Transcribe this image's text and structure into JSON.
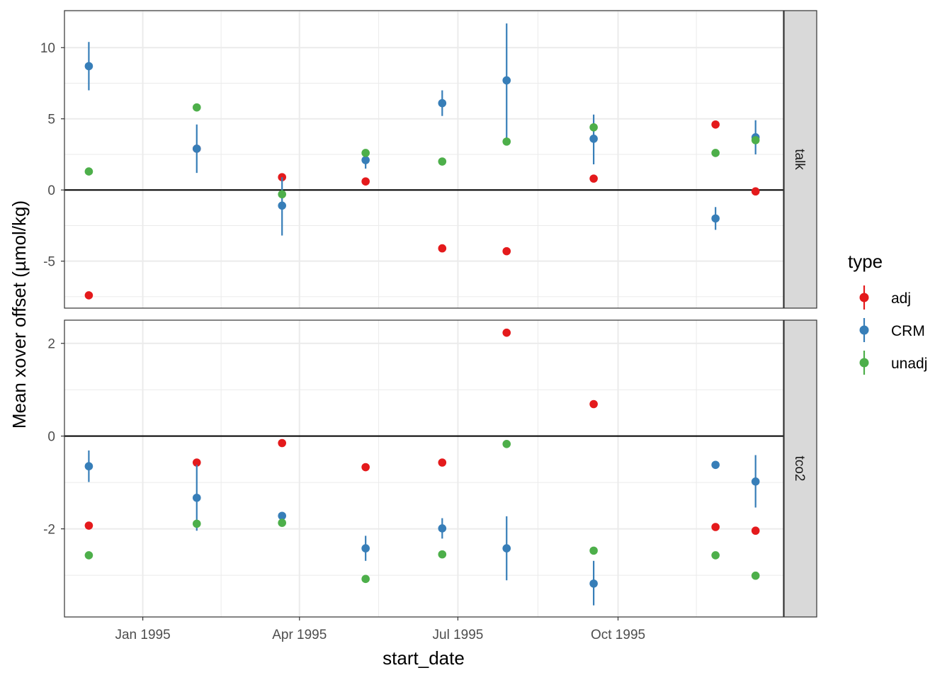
{
  "chart_data": {
    "type": "scatter",
    "subtype": "pointrange faceted by parameter",
    "xlabel": "start_date",
    "ylabel": "Mean xover offset (µmol/kg)",
    "x_ticks": [
      "Jan 1995",
      "Apr 1995",
      "Jul 1995",
      "Oct 1995"
    ],
    "x_tick_dates": [
      "1995-01-01",
      "1995-04-01",
      "1995-07-01",
      "1995-10-01"
    ],
    "xlim": [
      "1994-11-17",
      "1996-01-04"
    ],
    "grid": true,
    "hline_y": 0,
    "legend": {
      "title": "type",
      "position": "right",
      "entries": [
        {
          "label": "adj",
          "color": "#e41a1c"
        },
        {
          "label": "CRM",
          "color": "#377eb8"
        },
        {
          "label": "unadj",
          "color": "#4daf4a"
        }
      ]
    },
    "panels": [
      {
        "strip": "talk",
        "ylim": [
          -8.3,
          12.6
        ],
        "y_ticks": [
          10,
          5,
          0,
          -5
        ],
        "y_tick_labels": [
          "10",
          "5",
          "0",
          "-5"
        ],
        "series": [
          {
            "name": "adj",
            "points": [
              {
                "x": "1994-12-01",
                "y": -7.4
              },
              {
                "x": "1995-02-01",
                "y": 2.9
              },
              {
                "x": "1995-03-22",
                "y": 0.9
              },
              {
                "x": "1995-05-09",
                "y": 0.6
              },
              {
                "x": "1995-06-22",
                "y": -4.1
              },
              {
                "x": "1995-07-29",
                "y": -4.3
              },
              {
                "x": "1995-09-17",
                "y": 0.8
              },
              {
                "x": "1995-11-26",
                "y": 4.6
              },
              {
                "x": "1995-12-19",
                "y": -0.1
              }
            ]
          },
          {
            "name": "CRM",
            "points": [
              {
                "x": "1994-12-01",
                "y": 8.7,
                "ymin": 7.0,
                "ymax": 10.4
              },
              {
                "x": "1995-02-01",
                "y": 2.9,
                "ymin": 1.2,
                "ymax": 4.6
              },
              {
                "x": "1995-03-22",
                "y": -1.1,
                "ymin": -3.2,
                "ymax": 0.9
              },
              {
                "x": "1995-05-09",
                "y": 2.1,
                "ymin": 1.5,
                "ymax": 2.6
              },
              {
                "x": "1995-06-22",
                "y": 6.1,
                "ymin": 5.2,
                "ymax": 7.0
              },
              {
                "x": "1995-07-29",
                "y": 7.7,
                "ymin": 3.4,
                "ymax": 11.7
              },
              {
                "x": "1995-09-17",
                "y": 3.6,
                "ymin": 1.8,
                "ymax": 5.3
              },
              {
                "x": "1995-11-26",
                "y": -2.0,
                "ymin": -2.8,
                "ymax": -1.2
              },
              {
                "x": "1995-12-19",
                "y": 3.7,
                "ymin": 2.5,
                "ymax": 4.9
              }
            ]
          },
          {
            "name": "unadj",
            "points": [
              {
                "x": "1994-12-01",
                "y": 1.3
              },
              {
                "x": "1995-02-01",
                "y": 5.8
              },
              {
                "x": "1995-03-22",
                "y": -0.3
              },
              {
                "x": "1995-05-09",
                "y": 2.6
              },
              {
                "x": "1995-06-22",
                "y": 2.0
              },
              {
                "x": "1995-07-29",
                "y": 3.4
              },
              {
                "x": "1995-09-17",
                "y": 4.4
              },
              {
                "x": "1995-11-26",
                "y": 2.6
              },
              {
                "x": "1995-12-19",
                "y": 3.5
              }
            ]
          }
        ]
      },
      {
        "strip": "tco2",
        "ylim": [
          -3.9,
          2.5
        ],
        "y_ticks": [
          2,
          0,
          -2
        ],
        "y_tick_labels": [
          "2",
          "0",
          "-2"
        ],
        "series": [
          {
            "name": "adj",
            "points": [
              {
                "x": "1994-12-01",
                "y": -1.93
              },
              {
                "x": "1995-02-01",
                "y": -0.57
              },
              {
                "x": "1995-03-22",
                "y": -0.15
              },
              {
                "x": "1995-05-09",
                "y": -0.67
              },
              {
                "x": "1995-06-22",
                "y": -0.57
              },
              {
                "x": "1995-07-29",
                "y": 2.23
              },
              {
                "x": "1995-09-17",
                "y": 0.69
              },
              {
                "x": "1995-11-26",
                "y": -1.96
              },
              {
                "x": "1995-12-19",
                "y": -2.04
              }
            ]
          },
          {
            "name": "CRM",
            "points": [
              {
                "x": "1994-12-01",
                "y": -0.65,
                "ymin": -0.99,
                "ymax": -0.31
              },
              {
                "x": "1995-02-01",
                "y": -1.33,
                "ymin": -2.04,
                "ymax": -0.62
              },
              {
                "x": "1995-03-22",
                "y": -1.72
              },
              {
                "x": "1995-05-09",
                "y": -2.42,
                "ymin": -2.69,
                "ymax": -2.15
              },
              {
                "x": "1995-06-22",
                "y": -1.99,
                "ymin": -2.21,
                "ymax": -1.77
              },
              {
                "x": "1995-07-29",
                "y": -2.42,
                "ymin": -3.11,
                "ymax": -1.73
              },
              {
                "x": "1995-09-17",
                "y": -3.18,
                "ymin": -3.65,
                "ymax": -2.69
              },
              {
                "x": "1995-11-26",
                "y": -0.62
              },
              {
                "x": "1995-12-19",
                "y": -0.98,
                "ymin": -1.54,
                "ymax": -0.41
              }
            ]
          },
          {
            "name": "unadj",
            "points": [
              {
                "x": "1994-12-01",
                "y": -2.57
              },
              {
                "x": "1995-02-01",
                "y": -1.89
              },
              {
                "x": "1995-03-22",
                "y": -1.87
              },
              {
                "x": "1995-05-09",
                "y": -3.08
              },
              {
                "x": "1995-06-22",
                "y": -2.55
              },
              {
                "x": "1995-07-29",
                "y": -0.17
              },
              {
                "x": "1995-09-17",
                "y": -2.47
              },
              {
                "x": "1995-11-26",
                "y": -2.57
              },
              {
                "x": "1995-12-19",
                "y": -3.01
              }
            ]
          }
        ]
      }
    ]
  }
}
